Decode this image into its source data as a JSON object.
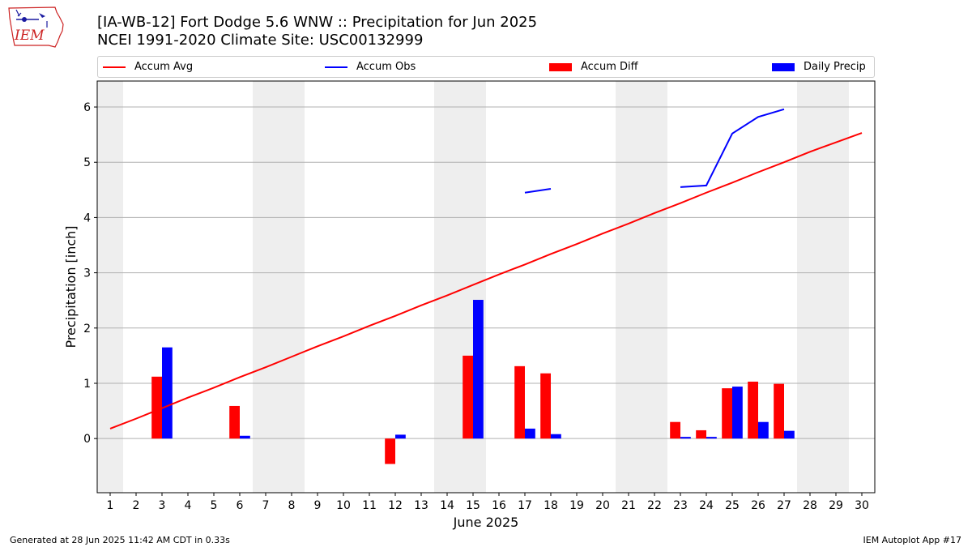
{
  "header": {
    "title_line1": "[IA-WB-12] Fort Dodge 5.6 WNW :: Precipitation for Jun 2025",
    "title_line2": "NCEI 1991-2020 Climate Site: USC00132999"
  },
  "logo": {
    "text": "IEM",
    "icon": "iem-iowa-logo-icon"
  },
  "legend": {
    "items": [
      {
        "label": "Accum Avg",
        "kind": "line",
        "color": "#ff0000"
      },
      {
        "label": "Accum Obs",
        "kind": "line",
        "color": "#0000ff"
      },
      {
        "label": "Accum Diff",
        "kind": "box",
        "color": "#ff0000"
      },
      {
        "label": "Daily Precip",
        "kind": "box",
        "color": "#0000ff"
      }
    ]
  },
  "footer": {
    "left": "Generated at 28 Jun 2025 11:42 AM CDT in 0.33s",
    "right": "IEM Autoplot App #17"
  },
  "chart_data": {
    "type": "bar",
    "title": "[IA-WB-12] Fort Dodge 5.6 WNW :: Precipitation for Jun 2025",
    "subtitle": "NCEI 1991-2020 Climate Site: USC00132999",
    "xlabel": "June 2025",
    "ylabel": "Precipitation [inch]",
    "x": [
      1,
      2,
      3,
      4,
      5,
      6,
      7,
      8,
      9,
      10,
      11,
      12,
      13,
      14,
      15,
      16,
      17,
      18,
      19,
      20,
      21,
      22,
      23,
      24,
      25,
      26,
      27,
      28,
      29,
      30
    ],
    "xlim": [
      0.5,
      30.5
    ],
    "ylim": [
      -0.98,
      6.47
    ],
    "yticks": [
      0,
      1,
      2,
      3,
      4,
      5,
      6
    ],
    "grid": "horizontal",
    "weekend_shading": [
      [
        0.5,
        1.5
      ],
      [
        6.5,
        8.5
      ],
      [
        13.5,
        15.5
      ],
      [
        20.5,
        22.5
      ],
      [
        27.5,
        29.5
      ]
    ],
    "legend_position": "top",
    "colors": {
      "avg": "#ff0000",
      "obs": "#0000ff",
      "diff": "#ff0000",
      "daily": "#0000ff",
      "shade": "#eeeeee",
      "grid": "#b0b0b0"
    },
    "series": [
      {
        "name": "Accum Avg",
        "kind": "line",
        "values": [
          0.18,
          0.36,
          0.55,
          0.74,
          0.92,
          1.11,
          1.29,
          1.48,
          1.67,
          1.85,
          2.04,
          2.22,
          2.41,
          2.59,
          2.78,
          2.97,
          3.15,
          3.34,
          3.52,
          3.71,
          3.89,
          4.08,
          4.26,
          4.45,
          4.63,
          4.82,
          5.0,
          5.19,
          5.36,
          5.53
        ]
      },
      {
        "name": "Accum Obs",
        "kind": "line",
        "values": [
          null,
          null,
          null,
          null,
          null,
          null,
          null,
          null,
          null,
          null,
          null,
          null,
          null,
          null,
          null,
          null,
          4.45,
          4.52,
          null,
          null,
          null,
          null,
          4.55,
          4.58,
          5.52,
          5.82,
          5.96,
          null,
          null,
          null
        ]
      },
      {
        "name": "Accum Diff",
        "kind": "bar",
        "values": [
          0,
          0,
          1.12,
          0,
          0,
          0.59,
          0,
          0,
          0,
          0,
          0,
          -0.46,
          0,
          0,
          1.5,
          0,
          1.31,
          1.18,
          0,
          0,
          0,
          0,
          0.3,
          0.15,
          0.91,
          1.03,
          0.99,
          0,
          0,
          0
        ]
      },
      {
        "name": "Daily Precip",
        "kind": "bar",
        "values": [
          0,
          0,
          1.65,
          0,
          0,
          0.05,
          0,
          0,
          0,
          0,
          0,
          0.07,
          0,
          0,
          2.51,
          0,
          0.18,
          0.08,
          0,
          0,
          0,
          0,
          0.03,
          0.03,
          0.94,
          0.3,
          0.14,
          0,
          0,
          0
        ]
      }
    ]
  }
}
